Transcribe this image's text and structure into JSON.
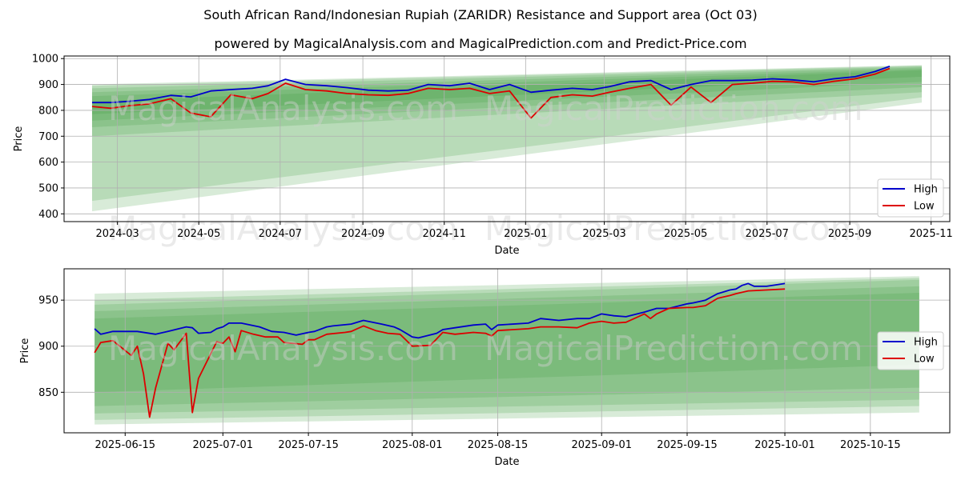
{
  "title": "South African Rand/Indonesian Rupiah (ZARIDR) Resistance and Support area (Oct 03)",
  "subtitle": "powered by MagicalAnalysis.com and MagicalPrediction.com and Predict-Price.com",
  "watermarks": [
    "MagicalAnalysis.com",
    "MagicalPrediction.com"
  ],
  "colors": {
    "high": "#0000cc",
    "low": "#dd0000",
    "band": "#3a9a3a",
    "grid": "#b0b0b0"
  },
  "chart_data": [
    {
      "type": "line",
      "name": "top",
      "xlabel": "Date",
      "ylabel": "Price",
      "xlim": [
        "2024-01-21",
        "2025-11-15"
      ],
      "ylim": [
        370,
        1010
      ],
      "x_ticks": [
        "2024-03",
        "2024-05",
        "2024-07",
        "2024-09",
        "2024-11",
        "2025-01",
        "2025-03",
        "2025-05",
        "2025-07",
        "2025-09",
        "2025-11"
      ],
      "y_ticks": [
        400,
        500,
        600,
        700,
        800,
        900,
        1000
      ],
      "legend": [
        "High",
        "Low"
      ],
      "legend_position": "lower right",
      "grid": true,
      "bands": {
        "start": "2024-02-11",
        "end": "2025-10-25",
        "upper_start": [
          900,
          895,
          885,
          870,
          855,
          835
        ],
        "upper_end": [
          975,
          973,
          970,
          966,
          960,
          955
        ],
        "lower_start": [
          410,
          450,
          700,
          735,
          760,
          785
        ],
        "lower_end": [
          830,
          850,
          870,
          890,
          910,
          930
        ]
      },
      "series": [
        {
          "name": "High",
          "x": [
            "2024-02-11",
            "2024-02-25",
            "2024-03-10",
            "2024-03-25",
            "2024-04-10",
            "2024-04-25",
            "2024-05-10",
            "2024-05-25",
            "2024-06-10",
            "2024-06-22",
            "2024-07-05",
            "2024-07-20",
            "2024-08-05",
            "2024-08-20",
            "2024-09-05",
            "2024-09-20",
            "2024-10-05",
            "2024-10-20",
            "2024-11-05",
            "2024-11-20",
            "2024-12-05",
            "2024-12-20",
            "2025-01-05",
            "2025-01-20",
            "2025-02-05",
            "2025-02-20",
            "2025-03-05",
            "2025-03-20",
            "2025-04-05",
            "2025-04-20",
            "2025-05-05",
            "2025-05-20",
            "2025-06-05",
            "2025-06-20",
            "2025-07-05",
            "2025-07-20",
            "2025-08-05",
            "2025-08-20",
            "2025-09-05",
            "2025-09-20",
            "2025-10-01"
          ],
          "values": [
            830,
            830,
            835,
            842,
            858,
            852,
            875,
            880,
            885,
            895,
            920,
            900,
            895,
            888,
            878,
            875,
            878,
            900,
            895,
            905,
            880,
            900,
            870,
            878,
            885,
            880,
            892,
            910,
            915,
            880,
            900,
            915,
            915,
            917,
            922,
            918,
            910,
            922,
            930,
            950,
            970
          ]
        },
        {
          "name": "Low",
          "x": [
            "2024-02-11",
            "2024-02-25",
            "2024-03-10",
            "2024-03-25",
            "2024-04-10",
            "2024-04-25",
            "2024-05-10",
            "2024-05-25",
            "2024-06-10",
            "2024-06-22",
            "2024-07-05",
            "2024-07-20",
            "2024-08-05",
            "2024-08-20",
            "2024-09-05",
            "2024-09-20",
            "2024-10-05",
            "2024-10-20",
            "2024-11-05",
            "2024-11-20",
            "2024-12-05",
            "2024-12-20",
            "2025-01-05",
            "2025-01-20",
            "2025-02-05",
            "2025-02-20",
            "2025-03-05",
            "2025-03-20",
            "2025-04-05",
            "2025-04-20",
            "2025-05-05",
            "2025-05-20",
            "2025-06-05",
            "2025-06-20",
            "2025-07-05",
            "2025-07-20",
            "2025-08-05",
            "2025-08-20",
            "2025-09-05",
            "2025-09-20",
            "2025-10-01"
          ],
          "values": [
            815,
            808,
            818,
            825,
            845,
            790,
            775,
            860,
            845,
            865,
            905,
            880,
            875,
            865,
            860,
            858,
            865,
            885,
            880,
            885,
            865,
            875,
            770,
            850,
            860,
            855,
            870,
            885,
            900,
            820,
            890,
            830,
            900,
            905,
            912,
            910,
            900,
            912,
            922,
            940,
            962
          ]
        }
      ]
    },
    {
      "type": "line",
      "name": "bottom",
      "xlabel": "Date",
      "ylabel": "Price",
      "xlim": [
        "2025-06-05",
        "2025-10-28"
      ],
      "ylim": [
        806,
        984
      ],
      "x_ticks": [
        "2025-06-15",
        "2025-07-01",
        "2025-07-15",
        "2025-08-01",
        "2025-08-15",
        "2025-09-01",
        "2025-09-15",
        "2025-10-01",
        "2025-10-15"
      ],
      "y_ticks": [
        850,
        900,
        950
      ],
      "legend": [
        "High",
        "Low"
      ],
      "legend_position": "center right",
      "grid": true,
      "bands": {
        "start": "2025-06-10",
        "end": "2025-10-23",
        "upper_start": [
          957,
          950,
          945,
          938,
          930
        ],
        "upper_end": [
          976,
          974,
          972,
          965,
          958
        ],
        "lower_start": [
          815,
          820,
          827,
          835,
          850
        ],
        "lower_end": [
          828,
          835,
          842,
          855,
          880
        ]
      },
      "series": [
        {
          "name": "High",
          "x": [
            "2025-06-10",
            "2025-06-11",
            "2025-06-13",
            "2025-06-17",
            "2025-06-20",
            "2025-06-22",
            "2025-06-25",
            "2025-06-26",
            "2025-06-27",
            "2025-06-29",
            "2025-06-30",
            "2025-07-01",
            "2025-07-02",
            "2025-07-04",
            "2025-07-07",
            "2025-07-09",
            "2025-07-11",
            "2025-07-13",
            "2025-07-15",
            "2025-07-16",
            "2025-07-18",
            "2025-07-19",
            "2025-07-22",
            "2025-07-24",
            "2025-07-27",
            "2025-07-29",
            "2025-07-30",
            "2025-08-01",
            "2025-08-02",
            "2025-08-05",
            "2025-08-06",
            "2025-08-08",
            "2025-08-11",
            "2025-08-13",
            "2025-08-14",
            "2025-08-15",
            "2025-08-20",
            "2025-08-22",
            "2025-08-25",
            "2025-08-28",
            "2025-08-30",
            "2025-09-01",
            "2025-09-03",
            "2025-09-05",
            "2025-09-08",
            "2025-09-10",
            "2025-09-12",
            "2025-09-15",
            "2025-09-16",
            "2025-09-18",
            "2025-09-20",
            "2025-09-22",
            "2025-09-23",
            "2025-09-24",
            "2025-09-25",
            "2025-09-26",
            "2025-09-28",
            "2025-10-01"
          ],
          "values": [
            919,
            913,
            916,
            916,
            913,
            916,
            921,
            920,
            914,
            915,
            919,
            921,
            925,
            925,
            921,
            916,
            915,
            912,
            915,
            916,
            921,
            922,
            924,
            928,
            924,
            921,
            918,
            910,
            909,
            914,
            918,
            920,
            923,
            924,
            918,
            923,
            925,
            930,
            928,
            930,
            930,
            935,
            933,
            932,
            937,
            941,
            941,
            946,
            947,
            950,
            957,
            961,
            962,
            966,
            968,
            965,
            965,
            968
          ]
        },
        {
          "name": "Low",
          "x": [
            "2025-06-10",
            "2025-06-11",
            "2025-06-13",
            "2025-06-16",
            "2025-06-17",
            "2025-06-18",
            "2025-06-19",
            "2025-06-20",
            "2025-06-22",
            "2025-06-23",
            "2025-06-25",
            "2025-06-26",
            "2025-06-27",
            "2025-06-30",
            "2025-07-01",
            "2025-07-02",
            "2025-07-03",
            "2025-07-04",
            "2025-07-06",
            "2025-07-08",
            "2025-07-10",
            "2025-07-11",
            "2025-07-14",
            "2025-07-15",
            "2025-07-16",
            "2025-07-18",
            "2025-07-21",
            "2025-07-22",
            "2025-07-24",
            "2025-07-26",
            "2025-07-28",
            "2025-07-30",
            "2025-08-01",
            "2025-08-04",
            "2025-08-06",
            "2025-08-08",
            "2025-08-11",
            "2025-08-13",
            "2025-08-14",
            "2025-08-15",
            "2025-08-20",
            "2025-08-22",
            "2025-08-25",
            "2025-08-28",
            "2025-08-30",
            "2025-09-01",
            "2025-09-03",
            "2025-09-05",
            "2025-09-08",
            "2025-09-09",
            "2025-09-10",
            "2025-09-12",
            "2025-09-15",
            "2025-09-16",
            "2025-09-18",
            "2025-09-20",
            "2025-09-22",
            "2025-09-23",
            "2025-09-25",
            "2025-10-01"
          ],
          "values": [
            893,
            904,
            906,
            890,
            900,
            870,
            823,
            855,
            903,
            896,
            914,
            828,
            865,
            905,
            903,
            910,
            894,
            917,
            913,
            910,
            910,
            904,
            902,
            907,
            907,
            913,
            915,
            916,
            922,
            917,
            914,
            913,
            900,
            901,
            915,
            913,
            915,
            914,
            911,
            917,
            919,
            921,
            921,
            920,
            925,
            927,
            925,
            926,
            935,
            930,
            935,
            941,
            942,
            942,
            944,
            952,
            955,
            957,
            960,
            962
          ]
        }
      ]
    }
  ]
}
